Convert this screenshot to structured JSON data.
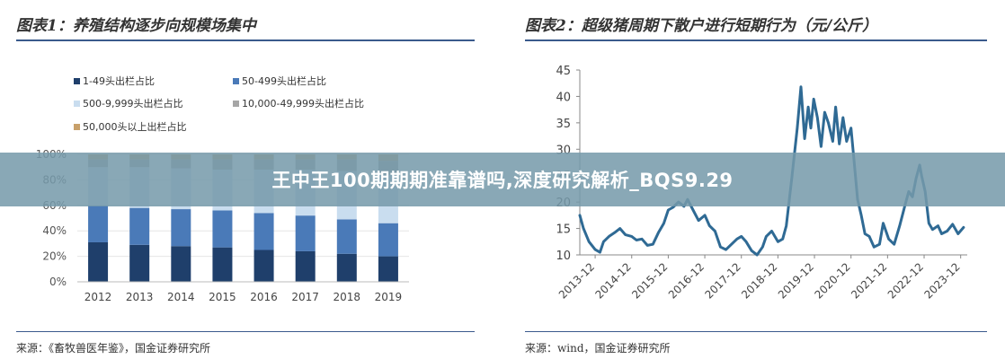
{
  "left_title": "图表1：养殖结构逐步向规模场集中",
  "right_title": "图表2：超级猪周期下散户进行短期行为（元/公斤）",
  "left_source": "来源：《畜牧兽医年鉴》，国金证券研究所",
  "right_source": "来源：wind，国金证券研究所",
  "overlay_banner": "王中王100期期期准靠谱吗,深度研究解析_BQS9.29",
  "colors": {
    "s1": "#1f3f6b",
    "s2": "#4a7ab8",
    "s3": "#c9ddef",
    "s4": "#a6a6a6",
    "s5": "#c8a06a",
    "line": "#2f6a94",
    "rule": "#3a5a8c"
  },
  "chart_data": [
    {
      "type": "bar",
      "stacked": true,
      "categories": [
        "2012",
        "2013",
        "2014",
        "2015",
        "2016",
        "2017",
        "2018",
        "2019"
      ],
      "series": [
        {
          "name": "1-49头出栏占比",
          "values": [
            31,
            29,
            28,
            27,
            25,
            24,
            22,
            20
          ]
        },
        {
          "name": "50-499头出栏占比",
          "values": [
            29,
            29,
            29,
            29,
            29,
            28,
            27,
            26
          ]
        },
        {
          "name": "500-9,999头出栏占比",
          "values": [
            30,
            32,
            32,
            32,
            34,
            36,
            38,
            38
          ]
        },
        {
          "name": "10,000-49,999头出栏占比",
          "values": [
            6,
            6,
            7,
            8,
            8,
            8,
            9,
            11
          ]
        },
        {
          "name": "50,000头以上出栏占比",
          "values": [
            4,
            4,
            4,
            4,
            4,
            4,
            4,
            5
          ]
        }
      ],
      "yticks": [
        "0%",
        "20%",
        "40%",
        "60%",
        "80%",
        "100%"
      ],
      "ylim": [
        0,
        100
      ],
      "legend_position": "top"
    },
    {
      "type": "line",
      "x_ticks": [
        "2013-12",
        "2014-12",
        "2015-12",
        "2016-12",
        "2017-12",
        "2018-12",
        "2019-12",
        "2020-12",
        "2021-12",
        "2022-12",
        "2023-12"
      ],
      "y_ticks": [
        "10",
        "15",
        "20",
        "25",
        "30",
        "35",
        "40",
        "45"
      ],
      "ylim": [
        10,
        45
      ],
      "xlim": [
        2013.5,
        2024.1
      ],
      "series": [
        {
          "x": [
            2013.5,
            2013.6,
            2013.75,
            2013.92,
            2014.05,
            2014.15,
            2014.3,
            2014.45,
            2014.6,
            2014.75,
            2014.92,
            2015.05,
            2015.2,
            2015.35,
            2015.5,
            2015.65,
            2015.8,
            2015.92,
            2016.05,
            2016.2,
            2016.35,
            2016.45,
            2016.6,
            2016.75,
            2016.92,
            2017.05,
            2017.2,
            2017.35,
            2017.5,
            2017.65,
            2017.8,
            2017.92,
            2018.05,
            2018.2,
            2018.35,
            2018.5,
            2018.6,
            2018.75,
            2018.92,
            2019.05,
            2019.15,
            2019.3,
            2019.45,
            2019.55,
            2019.65,
            2019.75,
            2019.82,
            2019.9,
            2020.0,
            2020.1,
            2020.2,
            2020.3,
            2020.42,
            2020.5,
            2020.6,
            2020.7,
            2020.8,
            2020.92,
            2021.0,
            2021.1,
            2021.2,
            2021.3,
            2021.42,
            2021.55,
            2021.7,
            2021.8,
            2021.95,
            2022.1,
            2022.25,
            2022.4,
            2022.5,
            2022.6,
            2022.7,
            2022.8,
            2022.85,
            2022.95,
            2023.05,
            2023.15,
            2023.3,
            2023.4,
            2023.55,
            2023.7,
            2023.85,
            2024.0
          ],
          "y": [
            17.5,
            15.0,
            12.5,
            11.0,
            10.5,
            12.5,
            13.5,
            14.2,
            15.0,
            13.8,
            13.5,
            12.8,
            13.0,
            11.8,
            12.0,
            14.2,
            16.0,
            18.5,
            19.0,
            20.0,
            19.2,
            20.5,
            18.5,
            16.5,
            17.5,
            15.5,
            14.5,
            11.5,
            11.0,
            12.0,
            13.0,
            13.5,
            12.5,
            10.8,
            10.0,
            11.5,
            13.5,
            14.5,
            12.5,
            13.0,
            15.5,
            24.5,
            34.0,
            41.8,
            32.0,
            38.0,
            34.0,
            39.5,
            36.0,
            30.5,
            37.0,
            35.0,
            31.5,
            38.0,
            31.0,
            36.0,
            31.5,
            34.0,
            28.0,
            20.5,
            17.5,
            14.0,
            13.5,
            11.5,
            12.0,
            16.0,
            13.0,
            12.0,
            15.5,
            19.5,
            22.0,
            21.0,
            24.5,
            27.0,
            25.0,
            22.0,
            16.0,
            14.8,
            15.5,
            14.0,
            14.5,
            15.8,
            14.0,
            15.2
          ]
        }
      ]
    }
  ]
}
